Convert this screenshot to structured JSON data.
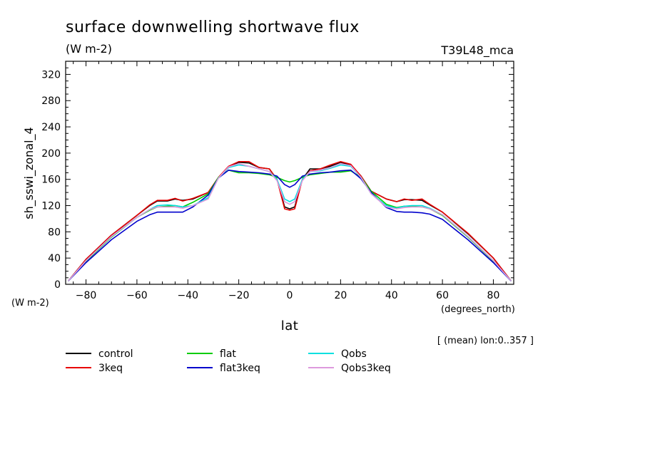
{
  "chart_data": {
    "type": "line",
    "title": "surface downwelling shortwave flux",
    "subtitle": "(W m-2)",
    "run_label": "T39L48_mca",
    "xlabel": "lat",
    "ylabel": "sh_sswi_zonal_4",
    "x_units": "(degrees_north)",
    "y_units": "(W m-2)",
    "footnote": "[ (mean) lon:0..357 ]",
    "xlim": [
      -88,
      88
    ],
    "ylim": [
      0,
      340
    ],
    "xticks": [
      -80,
      -60,
      -40,
      -20,
      0,
      20,
      40,
      60,
      80
    ],
    "yticks": [
      0,
      40,
      80,
      120,
      160,
      200,
      240,
      280,
      320
    ],
    "grid": false,
    "legend_position": "bottom",
    "x": [
      -87,
      -80,
      -70,
      -60,
      -55,
      -52,
      -48,
      -45,
      -42,
      -38,
      -32,
      -28,
      -24,
      -20,
      -16,
      -12,
      -8,
      -5,
      -2,
      0,
      2,
      5,
      8,
      12,
      16,
      20,
      24,
      28,
      32,
      38,
      42,
      45,
      48,
      52,
      55,
      60,
      70,
      80,
      87
    ],
    "series": [
      {
        "name": "control",
        "color": "#000000",
        "values": [
          5,
          38,
          75,
          105,
          120,
          127,
          127,
          130,
          128,
          130,
          140,
          162,
          178,
          186,
          185,
          178,
          176,
          160,
          118,
          115,
          118,
          160,
          176,
          176,
          180,
          186,
          182,
          165,
          142,
          130,
          126,
          129,
          129,
          128,
          121,
          110,
          77,
          40,
          5
        ]
      },
      {
        "name": "3keq",
        "color": "#e80000",
        "values": [
          5,
          38,
          75,
          105,
          121,
          128,
          128,
          131,
          127,
          131,
          140,
          163,
          180,
          187,
          187,
          178,
          176,
          160,
          115,
          113,
          115,
          160,
          173,
          176,
          182,
          187,
          183,
          165,
          142,
          130,
          126,
          130,
          128,
          130,
          122,
          110,
          78,
          40,
          5
        ]
      },
      {
        "name": "flat",
        "color": "#00cc00",
        "values": [
          5,
          35,
          72,
          102,
          113,
          118,
          119,
          120,
          118,
          125,
          138,
          163,
          174,
          170,
          170,
          169,
          167,
          163,
          158,
          156,
          158,
          163,
          167,
          169,
          171,
          171,
          173,
          163,
          142,
          122,
          117,
          119,
          119,
          118,
          115,
          105,
          72,
          35,
          5
        ]
      },
      {
        "name": "flat3keq",
        "color": "#0000cc",
        "values": [
          5,
          33,
          68,
          96,
          106,
          110,
          110,
          110,
          110,
          118,
          136,
          162,
          174,
          172,
          171,
          170,
          168,
          165,
          152,
          148,
          152,
          165,
          168,
          170,
          171,
          173,
          174,
          161,
          140,
          117,
          111,
          110,
          110,
          109,
          107,
          99,
          68,
          33,
          5
        ]
      },
      {
        "name": "Qobs",
        "color": "#00e0e0",
        "values": [
          5,
          36,
          73,
          102,
          114,
          120,
          121,
          120,
          118,
          120,
          132,
          162,
          178,
          182,
          180,
          176,
          172,
          160,
          130,
          126,
          130,
          160,
          172,
          173,
          177,
          182,
          180,
          163,
          138,
          120,
          116,
          119,
          120,
          120,
          116,
          106,
          73,
          36,
          5
        ]
      },
      {
        "name": "Qobs3keq",
        "color": "#dd99dd",
        "values": [
          5,
          36,
          73,
          102,
          114,
          118,
          118,
          118,
          116,
          120,
          130,
          162,
          179,
          184,
          180,
          176,
          172,
          158,
          126,
          122,
          126,
          158,
          172,
          174,
          178,
          184,
          181,
          163,
          138,
          118,
          115,
          117,
          118,
          118,
          115,
          106,
          73,
          36,
          5
        ]
      }
    ]
  }
}
